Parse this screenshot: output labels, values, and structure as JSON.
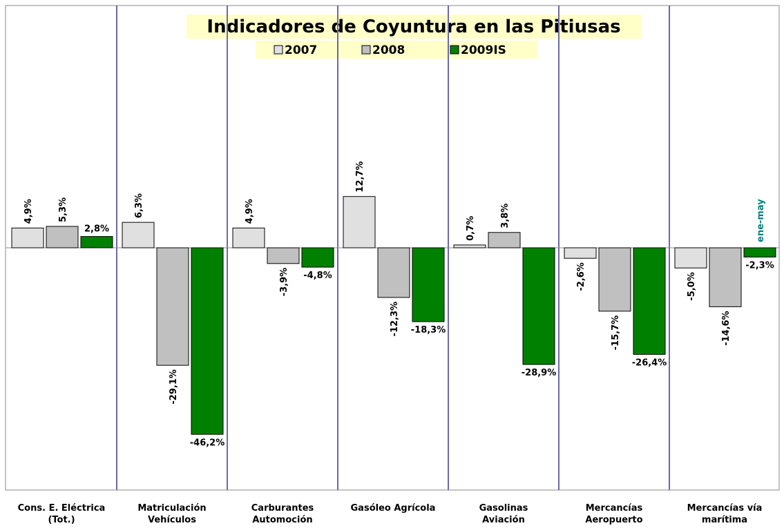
{
  "chart_data": {
    "type": "bar",
    "title": "Indicadores de Coyuntura en las Pitiusas",
    "categories": [
      [
        "Cons. E. Eléctrica",
        "(Tot.)"
      ],
      [
        "Matriculación",
        "Vehículos"
      ],
      [
        "Carburantes",
        "Automoción"
      ],
      [
        "Gasóleo Agrícola"
      ],
      [
        "Gasolinas",
        "Aviación"
      ],
      [
        "Mercancías",
        "Aeropuerto"
      ],
      [
        "Mercancías vía",
        "marítima"
      ]
    ],
    "series": [
      {
        "name": "2007",
        "color": "#e0e0e0",
        "values": [
          4.9,
          6.3,
          4.9,
          12.7,
          0.7,
          -2.6,
          -5.0
        ],
        "value_labels": [
          "4,9%",
          "6,3%",
          "4,9%",
          "12,7%",
          "0,7%",
          "-2,6%",
          "-5,0%"
        ]
      },
      {
        "name": "2008",
        "color": "#c0c0c0",
        "values": [
          5.3,
          -29.1,
          -3.9,
          -12.3,
          3.8,
          -15.7,
          -14.6
        ],
        "value_labels": [
          "5,3%",
          "-29,1%",
          "-3,9%",
          "-12,3%",
          "3,8%",
          "-15,7%",
          "-14,6%"
        ]
      },
      {
        "name": "2009IS",
        "color": "#008000",
        "values": [
          2.8,
          -46.2,
          -4.8,
          -18.3,
          -28.9,
          -26.4,
          -2.3
        ],
        "value_labels": [
          "2,8%",
          "-46,2%",
          "-4,8%",
          "-18,3%",
          "-28,9%",
          "-26,4%",
          "-2,3%"
        ]
      }
    ],
    "annotation": "ene-may",
    "ylim": [
      -60,
      60
    ]
  }
}
